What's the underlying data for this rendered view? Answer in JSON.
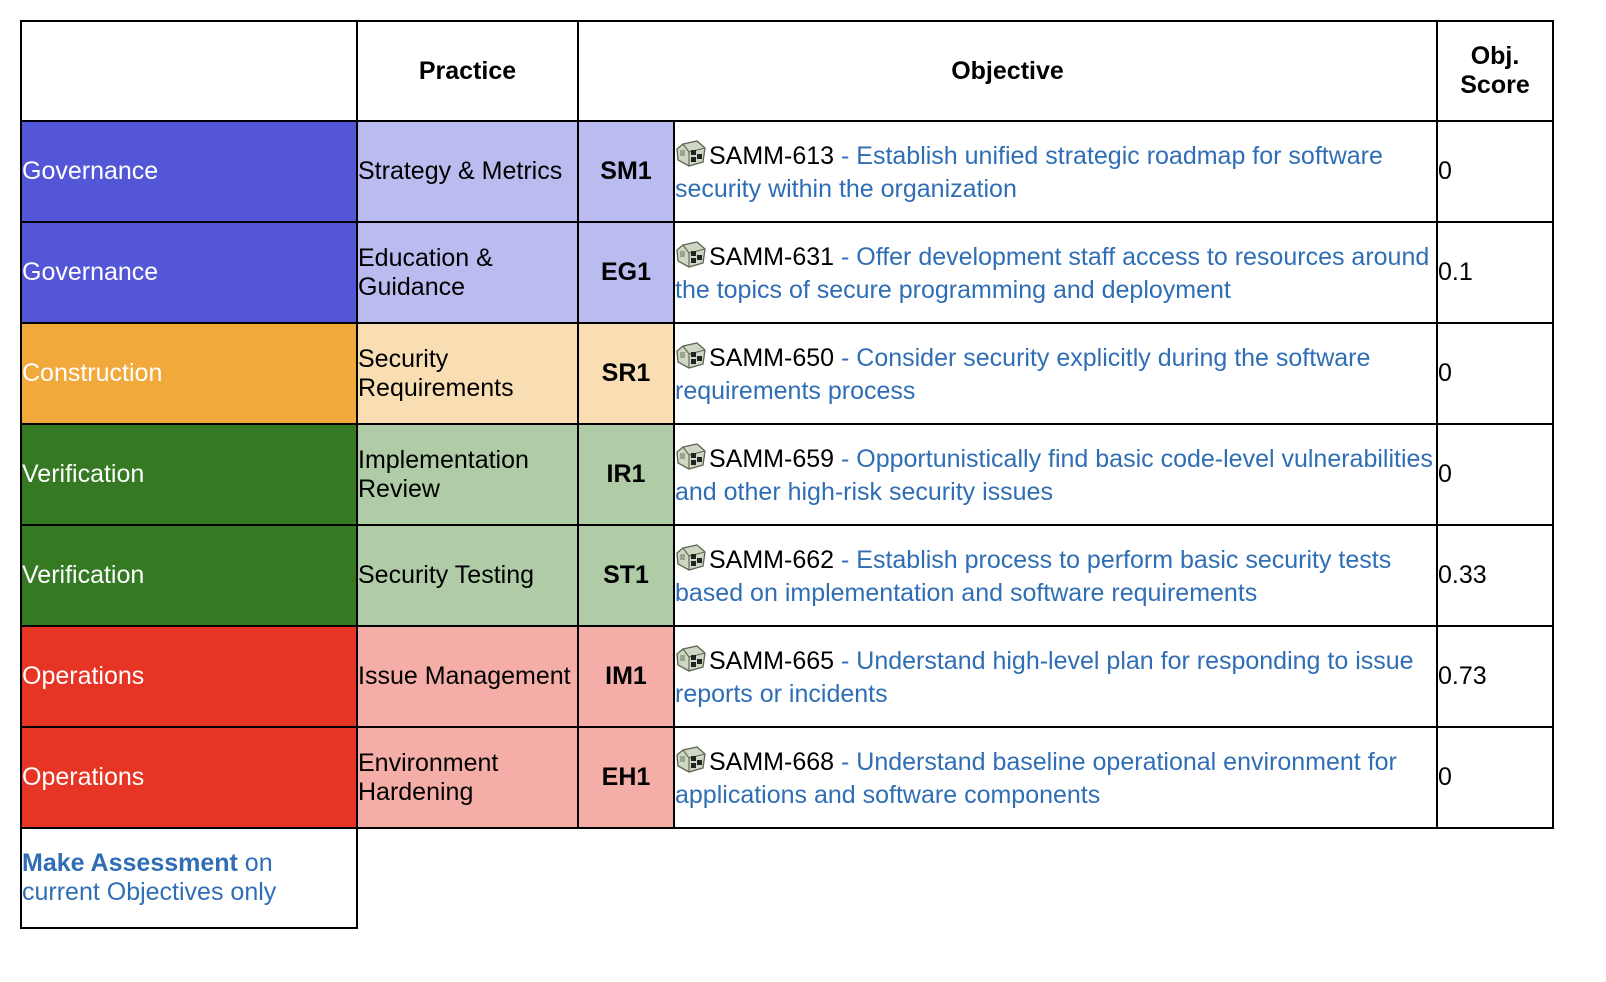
{
  "header": {
    "col1": "",
    "practice": "Practice",
    "objective": "Objective",
    "score": "Obj. Score"
  },
  "colors": {
    "governance_dark": "#5356d6",
    "governance_light": "#babbef",
    "construction_dark": "#f1a93b",
    "construction_light": "#f9deb4",
    "verification_dark": "#357a22",
    "verification_light": "#afcca7",
    "operations_dark": "#e73525",
    "operations_light": "#f4aea7",
    "link": "#2f6eb5"
  },
  "rows": [
    {
      "function": "Governance",
      "practice": "Strategy & Metrics",
      "code": "SM1",
      "icon": "jira-issue-icon",
      "key": "SAMM-613",
      "description": " - Establish unified strategic roadmap for software security within the organization",
      "score": "0"
    },
    {
      "function": "Governance",
      "practice": "Education & Guidance",
      "code": "EG1",
      "icon": "jira-issue-icon",
      "key": "SAMM-631",
      "description": " - Offer development staff access to resources around the topics of secure programming and deployment",
      "score": "0.1"
    },
    {
      "function": "Construction",
      "practice": "Security Requirements",
      "code": "SR1",
      "icon": "jira-issue-icon",
      "key": "SAMM-650",
      "description": " - Consider security explicitly during the software requirements process",
      "score": "0"
    },
    {
      "function": "Verification",
      "practice": "Implementation Review",
      "code": "IR1",
      "icon": "jira-issue-icon",
      "key": "SAMM-659",
      "description": " - Opportunistically find basic code-level vulnerabilities and other high-risk security issues",
      "score": "0"
    },
    {
      "function": "Verification",
      "practice": "Security Testing",
      "code": "ST1",
      "icon": "jira-issue-icon",
      "key": "SAMM-662",
      "description": " - Establish process to perform basic security tests based on implementation and software requirements",
      "score": "0.33"
    },
    {
      "function": "Operations",
      "practice": "Issue Management",
      "code": "IM1",
      "icon": "jira-issue-icon",
      "key": "SAMM-665",
      "description": " - Understand high-level plan for responding to issue reports or incidents",
      "score": "0.73"
    },
    {
      "function": "Operations",
      "practice": "Environment Hardening",
      "code": "EH1",
      "icon": "jira-issue-icon",
      "key": "SAMM-668",
      "description": " - Understand baseline operational environment for applications and software components",
      "score": "0"
    }
  ],
  "footer": {
    "link_label": "Make Assessment",
    "rest": " on current Objectives only"
  }
}
